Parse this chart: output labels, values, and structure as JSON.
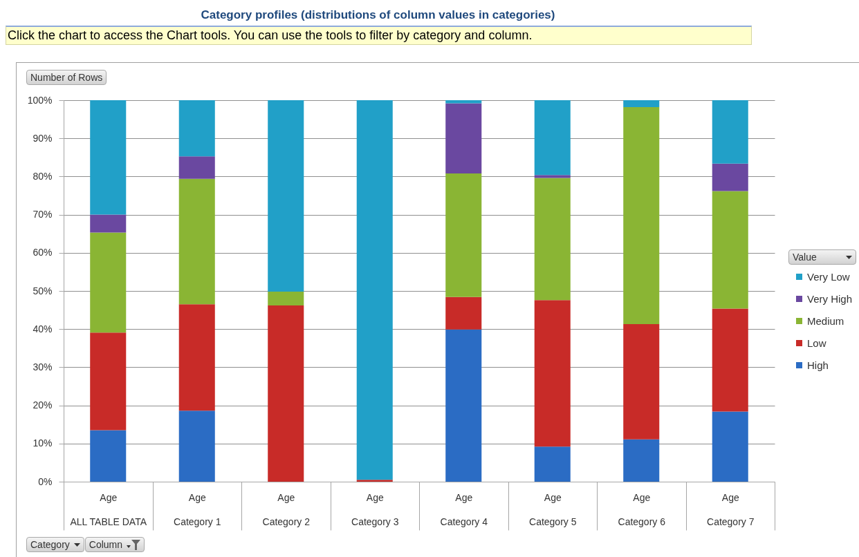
{
  "chart_data": {
    "type": "bar",
    "title": "Category profiles (distributions of column values in categories)",
    "subtitle": "Click the chart to access the Chart tools. You can use the tools to filter by category and column.",
    "ylabel": "Number of Rows",
    "legend_title": "Value",
    "annotations": [
      "Category",
      "Column"
    ],
    "categories": [
      "Age\nALL TABLE DATA",
      "Age\nCategory 1",
      "Age\nCategory 2",
      "Age\nCategory 3",
      "Age\nCategory 4",
      "Age\nCategory 5",
      "Age\nCategory 6",
      "Age\nCategory 7"
    ],
    "series": [
      {
        "name": "High",
        "color": "#2b6cc4",
        "values": [
          13.5,
          18.6,
          null,
          null,
          39.9,
          9.2,
          11.1,
          18.4
        ]
      },
      {
        "name": "Low",
        "color": "#c82b28",
        "values": [
          25.6,
          27.9,
          46.2,
          0.5,
          8.5,
          38.4,
          30.2,
          27.0
        ]
      },
      {
        "name": "Medium",
        "color": "#8ab534",
        "values": [
          26.2,
          32.9,
          3.6,
          null,
          32.4,
          32.0,
          56.9,
          30.8
        ]
      },
      {
        "name": "Very High",
        "color": "#6a48a0",
        "values": [
          4.7,
          5.9,
          null,
          null,
          18.4,
          0.8,
          null,
          7.2
        ]
      },
      {
        "name": "Very Low",
        "color": "#21a0c8",
        "values": [
          30.0,
          14.7,
          50.2,
          99.5,
          0.8,
          19.6,
          1.8,
          16.6
        ]
      }
    ],
    "stacked": true,
    "ylim": [
      0,
      100
    ],
    "yticks": [
      {
        "value": 0,
        "label": "0%"
      },
      {
        "value": 10,
        "label": "10%"
      },
      {
        "value": 20,
        "label": "20%"
      },
      {
        "value": 30,
        "label": "30%"
      },
      {
        "value": 40,
        "label": "40%"
      },
      {
        "value": 50,
        "label": "50%"
      },
      {
        "value": 60,
        "label": "60%"
      },
      {
        "value": 70,
        "label": "70%"
      },
      {
        "value": 80,
        "label": "80%"
      },
      {
        "value": 90,
        "label": "90%"
      },
      {
        "value": 100,
        "label": "100%"
      }
    ],
    "grid": "y",
    "legend": "right"
  }
}
